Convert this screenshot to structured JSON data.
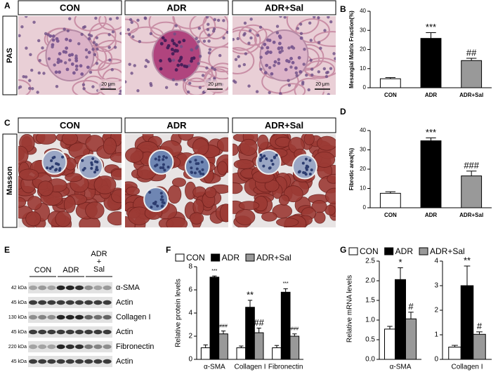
{
  "panels": {
    "A": {
      "letter": "A",
      "stain": "PAS",
      "columns": [
        "CON",
        "ADR",
        "ADR+Sal"
      ],
      "scale_bars": [
        "20 μm",
        "20 μm",
        "20 μm"
      ]
    },
    "C": {
      "letter": "C",
      "stain": "Masson",
      "columns": [
        "CON",
        "ADR",
        "ADR+Sal"
      ]
    },
    "E": {
      "letter": "E",
      "groups": [
        "CON",
        "ADR"
      ],
      "group3_lines": [
        "ADR",
        "+",
        "Sal"
      ],
      "rows": [
        {
          "size": "42 kDa",
          "protein": "α-SMA"
        },
        {
          "size": "45 kDa",
          "protein": "Actin"
        },
        {
          "size": "130 kDa",
          "protein": "Collagen I"
        },
        {
          "size": "45 kDa",
          "protein": "Actin"
        },
        {
          "size": "220 kDa",
          "protein": "Fibronectin"
        },
        {
          "size": "45 kDa",
          "protein": "Actin"
        }
      ]
    }
  },
  "chart_data": [
    {
      "type": "bar",
      "panel": "B",
      "y_label": "Mesangial Matrix Fraction(%)",
      "categories": [
        "CON",
        "ADR",
        "ADR+Sal"
      ],
      "values": [
        4.7,
        25.8,
        14.2
      ],
      "errors": [
        0.6,
        3.0,
        1.2
      ],
      "colors": [
        "#ffffff",
        "#000000",
        "#999999"
      ],
      "significance": [
        null,
        "***",
        "##"
      ],
      "ylim": [
        0,
        40
      ],
      "yticks": [
        0,
        10,
        20,
        30,
        40
      ]
    },
    {
      "type": "bar",
      "panel": "D",
      "y_label": "Fibrotic area(%)",
      "categories": [
        "CON",
        "ADR",
        "ADR+Sal"
      ],
      "values": [
        7.5,
        34.7,
        16.5
      ],
      "errors": [
        0.8,
        1.5,
        2.5
      ],
      "colors": [
        "#ffffff",
        "#000000",
        "#999999"
      ],
      "significance": [
        null,
        "***",
        "###"
      ],
      "ylim": [
        0,
        40
      ],
      "yticks": [
        0,
        10,
        20,
        30,
        40
      ]
    },
    {
      "type": "grouped-bar",
      "panel": "F",
      "y_label": "Relative protein levels",
      "categories": [
        "α-SMA",
        "Collagen I",
        "Fibronectin"
      ],
      "series": [
        {
          "name": "CON",
          "color": "#ffffff",
          "values": [
            1.0,
            1.0,
            1.0
          ],
          "errors": [
            0.25,
            0.15,
            0.2
          ]
        },
        {
          "name": "ADR",
          "color": "#000000",
          "values": [
            7.1,
            4.5,
            5.8
          ],
          "errors": [
            0.1,
            0.6,
            0.3
          ],
          "significance": [
            "***",
            "**",
            "***"
          ]
        },
        {
          "name": "ADR+Sal",
          "color": "#999999",
          "values": [
            2.2,
            2.3,
            2.0
          ],
          "errors": [
            0.25,
            0.4,
            0.2
          ],
          "significance": [
            "###",
            "##",
            "###"
          ]
        }
      ],
      "ylim": [
        0,
        8
      ],
      "yticks": [
        0,
        2,
        4,
        6,
        8
      ]
    },
    {
      "type": "grouped-bar",
      "panel": "G",
      "y_label": "Relative mRNA levels",
      "categories": [
        "α-SMA"
      ],
      "series": [
        {
          "name": "CON",
          "color": "#ffffff",
          "values": [
            0.77
          ],
          "errors": [
            0.07
          ]
        },
        {
          "name": "ADR",
          "color": "#000000",
          "values": [
            2.03
          ],
          "errors": [
            0.3
          ],
          "significance": [
            "*"
          ]
        },
        {
          "name": "ADR+Sal",
          "color": "#999999",
          "values": [
            1.03
          ],
          "errors": [
            0.17
          ],
          "significance": [
            "#"
          ]
        }
      ],
      "ylim": [
        0,
        2.5
      ],
      "yticks": [
        {
          "value": 0,
          "label": "0.0"
        },
        0.5,
        {
          "value": 1,
          "label": "1.0"
        },
        1.5,
        {
          "value": 2,
          "label": "2.0"
        },
        2.5
      ]
    },
    {
      "type": "grouped-bar",
      "categories": [
        "Collagen I"
      ],
      "series": [
        {
          "color": "#ffffff",
          "values": [
            0.5
          ],
          "errors": [
            0.07
          ]
        },
        {
          "color": "#000000",
          "values": [
            3.0
          ],
          "errors": [
            0.8
          ],
          "significance": [
            "**"
          ]
        },
        {
          "color": "#999999",
          "values": [
            1.02
          ],
          "errors": [
            0.1
          ],
          "significance": [
            "#"
          ]
        }
      ],
      "ylim": [
        0,
        4
      ],
      "yticks": [
        0,
        1,
        2,
        3,
        4
      ]
    }
  ]
}
